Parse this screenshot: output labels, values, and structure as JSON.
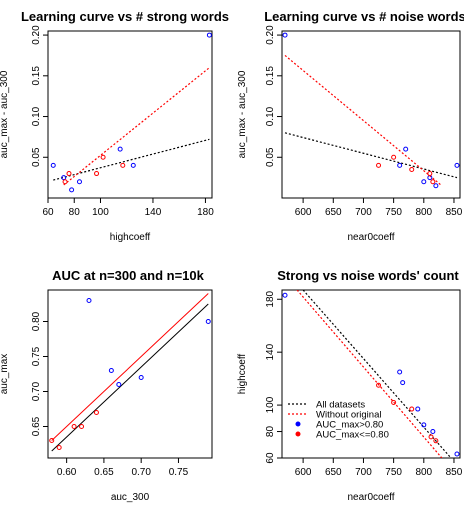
{
  "chart_data": [
    {
      "type": "scatter",
      "title": "Learning curve vs # strong words",
      "xlabel": "highcoeff",
      "ylabel": "auc_max - auc_300",
      "xlim": [
        60,
        185
      ],
      "ylim": [
        0,
        0.205
      ],
      "xticks": [
        60,
        80,
        100,
        140,
        180
      ],
      "yticks": [
        0.05,
        0.1,
        0.15,
        0.2
      ],
      "grid": false,
      "series": [
        {
          "marker": "blue",
          "points": [
            [
              64,
              0.04
            ],
            [
              72,
              0.025
            ],
            [
              78,
              0.01
            ],
            [
              84,
              0.02
            ],
            [
              115,
              0.06
            ],
            [
              125,
              0.04
            ],
            [
              183,
              0.2
            ]
          ]
        },
        {
          "marker": "red",
          "points": [
            [
              73,
              0.02
            ],
            [
              76,
              0.03
            ],
            [
              97,
              0.03
            ],
            [
              102,
              0.05
            ],
            [
              117,
              0.04
            ]
          ]
        }
      ],
      "lines": [
        {
          "style": "dotted",
          "color": "#000000",
          "from": [
            64,
            0.022
          ],
          "to": [
            183,
            0.072
          ]
        },
        {
          "style": "dotted",
          "color": "#ff0000",
          "from": [
            72,
            0.016
          ],
          "to": [
            183,
            0.16
          ]
        }
      ]
    },
    {
      "type": "scatter",
      "title": "Learning curve vs # noise words",
      "xlabel": "near0coeff",
      "ylabel": "auc_max - auc_300",
      "xlim": [
        565,
        860
      ],
      "ylim": [
        0,
        0.205
      ],
      "xticks": [
        600,
        650,
        700,
        750,
        800,
        850
      ],
      "yticks": [
        0.05,
        0.1,
        0.15,
        0.2
      ],
      "grid": false,
      "series": [
        {
          "marker": "blue",
          "points": [
            [
              570,
              0.2
            ],
            [
              760,
              0.04
            ],
            [
              770,
              0.06
            ],
            [
              800,
              0.02
            ],
            [
              810,
              0.025
            ],
            [
              820,
              0.015
            ],
            [
              855,
              0.04
            ]
          ]
        },
        {
          "marker": "red",
          "points": [
            [
              725,
              0.04
            ],
            [
              750,
              0.05
            ],
            [
              780,
              0.035
            ],
            [
              810,
              0.03
            ],
            [
              815,
              0.02
            ]
          ]
        }
      ],
      "lines": [
        {
          "style": "dotted",
          "color": "#000000",
          "from": [
            570,
            0.08
          ],
          "to": [
            855,
            0.025
          ]
        },
        {
          "style": "dotted",
          "color": "#ff0000",
          "from": [
            570,
            0.175
          ],
          "to": [
            830,
            0.015
          ]
        }
      ]
    },
    {
      "type": "scatter",
      "title": "AUC at n=300 and n=10k",
      "xlabel": "auc_300",
      "ylabel": "auc_max",
      "xlim": [
        0.575,
        0.795
      ],
      "ylim": [
        0.605,
        0.845
      ],
      "xticks": [
        0.6,
        0.65,
        0.7,
        0.75
      ],
      "yticks": [
        0.65,
        0.7,
        0.75,
        0.8
      ],
      "grid": false,
      "series": [
        {
          "marker": "blue",
          "points": [
            [
              0.63,
              0.83
            ],
            [
              0.66,
              0.73
            ],
            [
              0.67,
              0.71
            ],
            [
              0.7,
              0.72
            ],
            [
              0.79,
              0.8
            ]
          ]
        },
        {
          "marker": "red",
          "points": [
            [
              0.58,
              0.63
            ],
            [
              0.59,
              0.62
            ],
            [
              0.61,
              0.65
            ],
            [
              0.62,
              0.65
            ],
            [
              0.64,
              0.67
            ]
          ]
        }
      ],
      "lines": [
        {
          "style": "solid",
          "color": "#000000",
          "from": [
            0.58,
            0.615
          ],
          "to": [
            0.79,
            0.825
          ]
        },
        {
          "style": "solid",
          "color": "#ff0000",
          "from": [
            0.58,
            0.63
          ],
          "to": [
            0.79,
            0.84
          ]
        }
      ]
    },
    {
      "type": "scatter",
      "title": "Strong vs noise words' count",
      "xlabel": "near0coeff",
      "ylabel": "highcoeff",
      "xlim": [
        565,
        860
      ],
      "ylim": [
        60,
        187
      ],
      "xticks": [
        600,
        650,
        700,
        750,
        800,
        850
      ],
      "yticks": [
        60,
        80,
        100,
        140,
        180
      ],
      "grid": false,
      "series": [
        {
          "marker": "blue",
          "points": [
            [
              570,
              183
            ],
            [
              760,
              125
            ],
            [
              765,
              117
            ],
            [
              790,
              97
            ],
            [
              800,
              85
            ],
            [
              815,
              80
            ],
            [
              855,
              63
            ]
          ]
        },
        {
          "marker": "red",
          "points": [
            [
              725,
              115
            ],
            [
              750,
              102
            ],
            [
              780,
              97
            ],
            [
              812,
              76
            ],
            [
              820,
              73
            ]
          ]
        }
      ],
      "lines": [
        {
          "style": "dotted",
          "color": "#000000",
          "from": [
            600,
            187
          ],
          "to": [
            845,
            60
          ]
        },
        {
          "style": "dotted",
          "color": "#ff0000",
          "from": [
            590,
            187
          ],
          "to": [
            830,
            60
          ]
        }
      ],
      "legend": {
        "position": "bottom-left",
        "entries": [
          {
            "label": "All datasets",
            "kind": "line",
            "color": "#000000"
          },
          {
            "label": "Without original",
            "kind": "line",
            "color": "#ff0000"
          },
          {
            "label": "AUC_max>0.80",
            "kind": "point",
            "color": "#0000ff"
          },
          {
            "label": "AUC_max<=0.80",
            "kind": "point",
            "color": "#ff0000"
          }
        ]
      }
    }
  ],
  "colors": {
    "blue_marker": "#0000ff",
    "red_marker": "#ff0000",
    "axis": "#000000"
  }
}
